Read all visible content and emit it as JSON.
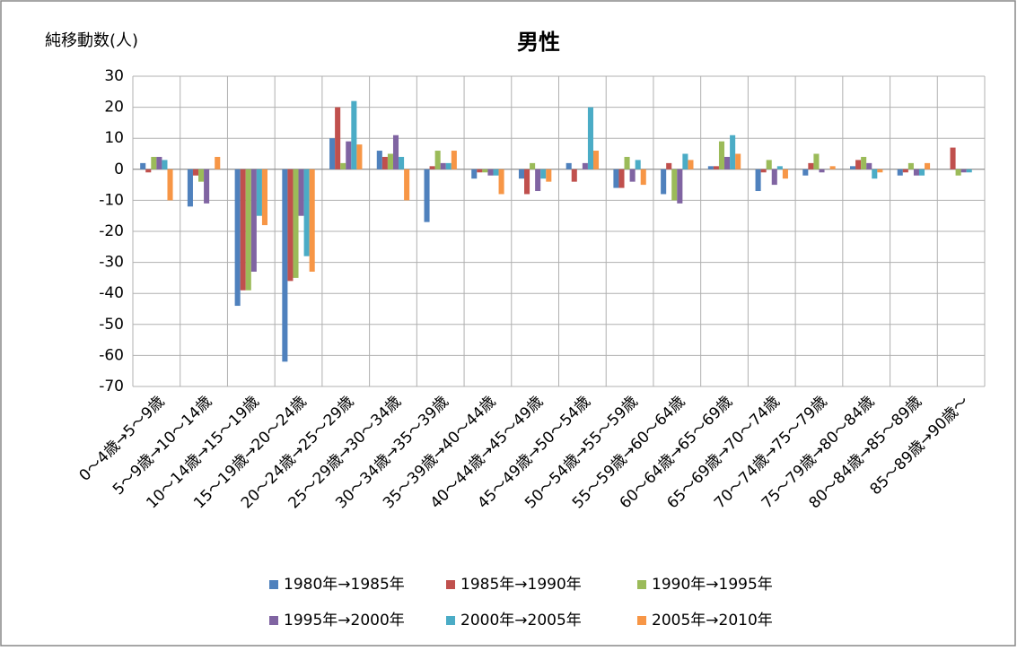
{
  "chart_data": {
    "type": "bar",
    "title": "男性",
    "ylabel": "純移動数(人)",
    "categories": [
      "0～4歳→5～9歳",
      "5～9歳→10～14歳",
      "10～14歳→15～19歳",
      "15～19歳→20～24歳",
      "20～24歳→25～29歳",
      "25～29歳→30～34歳",
      "30～34歳→35～39歳",
      "35～39歳→40～44歳",
      "40～44歳→45～49歳",
      "45～49歳→50～54歳",
      "50～54歳→55～59歳",
      "55～59歳→60～64歳",
      "60～64歳→65～69歳",
      "65～69歳→70～74歳",
      "70～74歳→75～79歳",
      "75～79歳→80～84歳",
      "80～84歳→85～89歳",
      "85～89歳→90歳～"
    ],
    "series": [
      {
        "name": "1980年→1985年",
        "color": "#4f81bd",
        "values": [
          2,
          -12,
          -44,
          -62,
          10,
          6,
          -17,
          -3,
          -3,
          2,
          -6,
          -8,
          1,
          -7,
          -2,
          1,
          -2,
          0
        ]
      },
      {
        "name": "1985年→1990年",
        "color": "#c0504d",
        "values": [
          -1,
          -2,
          -39,
          -36,
          20,
          4,
          1,
          -1,
          -8,
          -4,
          -6,
          2,
          1,
          -1,
          2,
          3,
          -1,
          7
        ]
      },
      {
        "name": "1990年→1995年",
        "color": "#9bbb59",
        "values": [
          4,
          -4,
          -39,
          -35,
          2,
          5,
          6,
          -1,
          2,
          0,
          4,
          -10,
          9,
          3,
          5,
          4,
          2,
          -2
        ]
      },
      {
        "name": "1995年→2000年",
        "color": "#8064a2",
        "values": [
          4,
          -11,
          -33,
          -15,
          9,
          11,
          2,
          -2,
          -7,
          2,
          -4,
          -11,
          4,
          -5,
          -1,
          2,
          -2,
          -1
        ]
      },
      {
        "name": "2000年→2005年",
        "color": "#4bacc6",
        "values": [
          3,
          0,
          -15,
          -28,
          22,
          4,
          2,
          -2,
          -3,
          20,
          3,
          5,
          11,
          1,
          0,
          -3,
          -2,
          -1
        ]
      },
      {
        "name": "2005年→2010年",
        "color": "#f79646",
        "values": [
          -10,
          4,
          -18,
          -33,
          8,
          -10,
          6,
          -8,
          -4,
          6,
          -5,
          3,
          5,
          -3,
          1,
          -1,
          2,
          0
        ]
      }
    ],
    "ylim": [
      -70,
      30
    ],
    "yticks": [
      -70,
      -60,
      -50,
      -40,
      -30,
      -20,
      -10,
      0,
      10,
      20,
      30
    ],
    "grid": true,
    "legend": "bottom"
  }
}
